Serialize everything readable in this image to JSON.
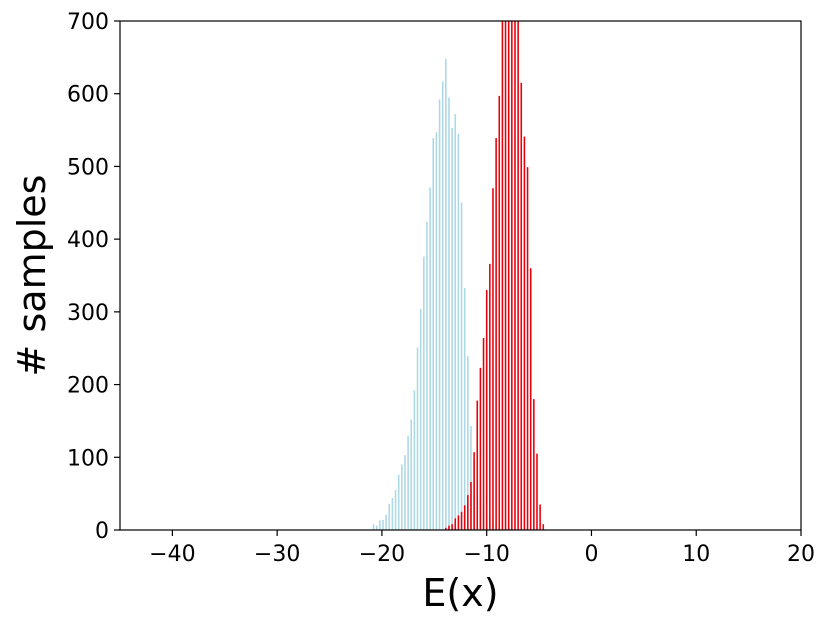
{
  "chart_data": {
    "type": "bar",
    "title": "",
    "xlabel": "E(x)",
    "ylabel": "# samples",
    "xlim": [
      -45,
      20
    ],
    "ylim": [
      0,
      700
    ],
    "xticks": [
      -40,
      -30,
      -20,
      -10,
      0,
      10,
      20
    ],
    "xtick_labels": [
      "−40",
      "−30",
      "−20",
      "−10",
      "0",
      "10",
      "20"
    ],
    "yticks": [
      0,
      100,
      200,
      300,
      400,
      500,
      600,
      700
    ],
    "ytick_labels": [
      "0",
      "100",
      "200",
      "300",
      "400",
      "500",
      "600",
      "700"
    ],
    "grid": false,
    "legend": "none",
    "bin_width": 0.3,
    "series": [
      {
        "color": "#add8e6",
        "x": [
          -20.8,
          -20.5,
          -20.2,
          -19.9,
          -19.6,
          -19.3,
          -19.0,
          -18.7,
          -18.4,
          -18.1,
          -17.8,
          -17.5,
          -17.2,
          -16.9,
          -16.6,
          -16.3,
          -16.0,
          -15.7,
          -15.4,
          -15.1,
          -14.8,
          -14.5,
          -14.2,
          -13.9,
          -13.6,
          -13.3,
          -13.0,
          -12.7,
          -12.4,
          -12.1,
          -11.8,
          -11.5,
          -11.2,
          -10.9,
          -10.6,
          -10.3,
          -10.0,
          -9.7,
          -9.4,
          -9.1,
          -8.8,
          -8.5
        ],
        "values": [
          8,
          6,
          13,
          14,
          21,
          36,
          44,
          55,
          76,
          90,
          103,
          129,
          152,
          192,
          251,
          304,
          376,
          424,
          471,
          539,
          547,
          592,
          617,
          648,
          595,
          553,
          572,
          545,
          450,
          333,
          239,
          143,
          94,
          67,
          44,
          35,
          22,
          20,
          10,
          8,
          5,
          3
        ]
      },
      {
        "color": "#e8000b",
        "x": [
          -13.9,
          -13.6,
          -13.3,
          -13.0,
          -12.7,
          -12.4,
          -12.1,
          -11.8,
          -11.5,
          -11.2,
          -10.9,
          -10.6,
          -10.3,
          -10.0,
          -9.7,
          -9.4,
          -9.1,
          -8.8,
          -8.5,
          -8.2,
          -7.9,
          -7.6,
          -7.3,
          -7.0,
          -6.7,
          -6.4,
          -6.1,
          -5.8,
          -5.5,
          -5.2,
          -4.9,
          -4.6
        ],
        "values": [
          3,
          6,
          8,
          16,
          20,
          25,
          34,
          48,
          66,
          107,
          178,
          223,
          264,
          330,
          366,
          470,
          539,
          597,
          700,
          700,
          700,
          700,
          700,
          700,
          615,
          541,
          499,
          360,
          180,
          105,
          35,
          8
        ]
      }
    ]
  }
}
